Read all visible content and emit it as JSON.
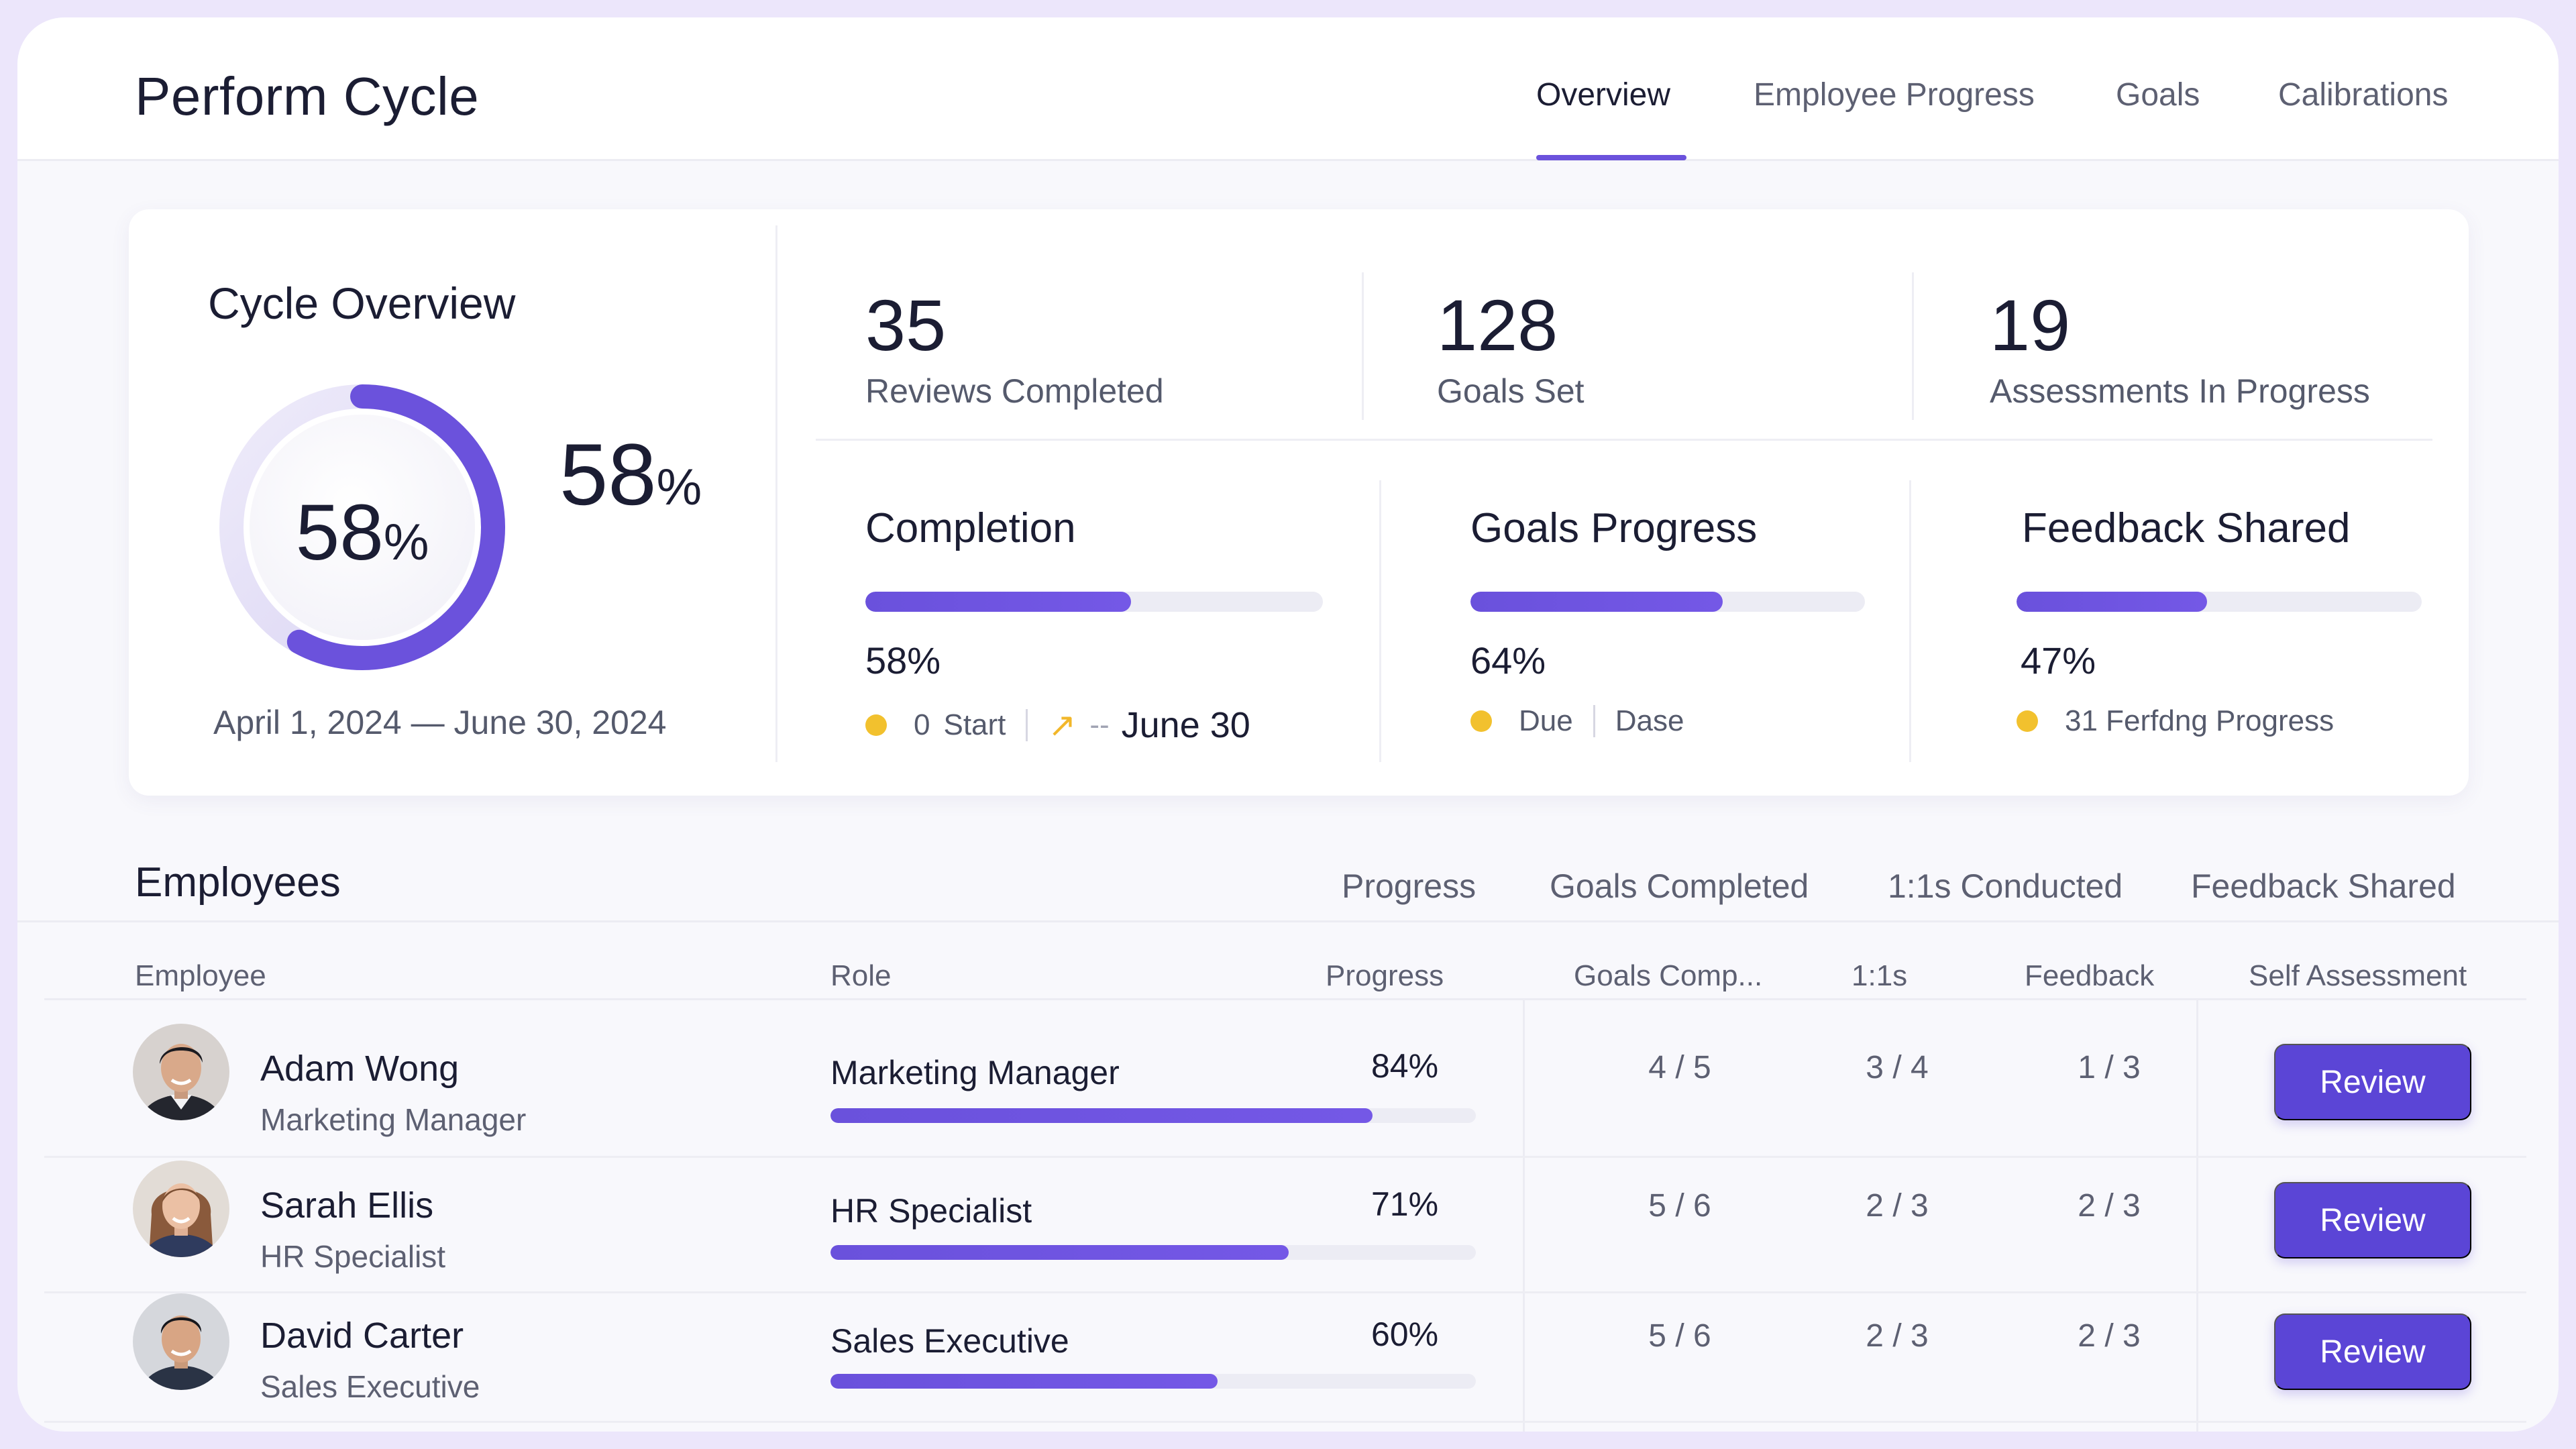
{
  "app": {
    "title": "Perform Cycle"
  },
  "nav": {
    "tabs": [
      {
        "label": "Overview",
        "active": true
      },
      {
        "label": "Employee Progress",
        "active": false
      },
      {
        "label": "Goals",
        "active": false
      },
      {
        "label": "Calibrations",
        "active": false
      }
    ]
  },
  "overview": {
    "title": "Cycle Overview",
    "completion_fraction": 0.58,
    "donut_value": "58",
    "big_value": "58",
    "percent_sign": "%",
    "date_range": "April 1, 2024 — June 30, 2024",
    "stats": [
      {
        "value": "35",
        "label": "Reviews Completed"
      },
      {
        "value": "128",
        "label": "Goals Set"
      },
      {
        "value": "19",
        "label": "Assessments In Progress"
      }
    ],
    "metrics": [
      {
        "title": "Completion",
        "percent": 58,
        "percent_label": "58%",
        "meta": [
          "0",
          "Start",
          "June 30"
        ]
      },
      {
        "title": "Goals Progress",
        "percent": 64,
        "percent_label": "64%",
        "meta": [
          "Due",
          "Dase"
        ]
      },
      {
        "title": "Feedback Shared",
        "percent": 47,
        "percent_label": "47%",
        "meta": [
          "31 Ferfdng Progress"
        ]
      }
    ]
  },
  "employees": {
    "title": "Employees",
    "filter_tabs": [
      "Progress",
      "Goals Completed",
      "1:1s Conducted",
      "Feedback Shared"
    ],
    "columns": [
      "Employee",
      "Role",
      "Progress",
      "Goals Comp...",
      "1:1s",
      "Feedback",
      "Self Assessment"
    ],
    "rows": [
      {
        "name": "Adam Wong",
        "subtitle": "Marketing Manager",
        "role": "Marketing Manager",
        "progress": 84,
        "progress_label": "84%",
        "goals": "4 / 5",
        "one_on_ones": "3 / 4",
        "feedback": "1 / 3",
        "action": "Review"
      },
      {
        "name": "Sarah Ellis",
        "subtitle": "HR Specialist",
        "role": "HR Specialist",
        "progress": 71,
        "progress_label": "71%",
        "goals": "5 / 6",
        "one_on_ones": "2 / 3",
        "feedback": "2 / 3",
        "action": "Review"
      },
      {
        "name": "David Carter",
        "subtitle": "Sales Executive",
        "role": "Sales Executive",
        "progress": 60,
        "progress_label": "60%",
        "goals": "5 / 6",
        "one_on_ones": "2 / 3",
        "feedback": "2 / 3",
        "action": "Review"
      }
    ]
  },
  "colors": {
    "accent": "#6b52dc",
    "button": "#5b45d6",
    "status_dot": "#f2c12e",
    "track": "#ececf4"
  },
  "icons": [
    "avatar-adam-wong",
    "avatar-sarah-ellis",
    "avatar-david-carter",
    "trend-arrow-icon",
    "status-dot-icon"
  ]
}
